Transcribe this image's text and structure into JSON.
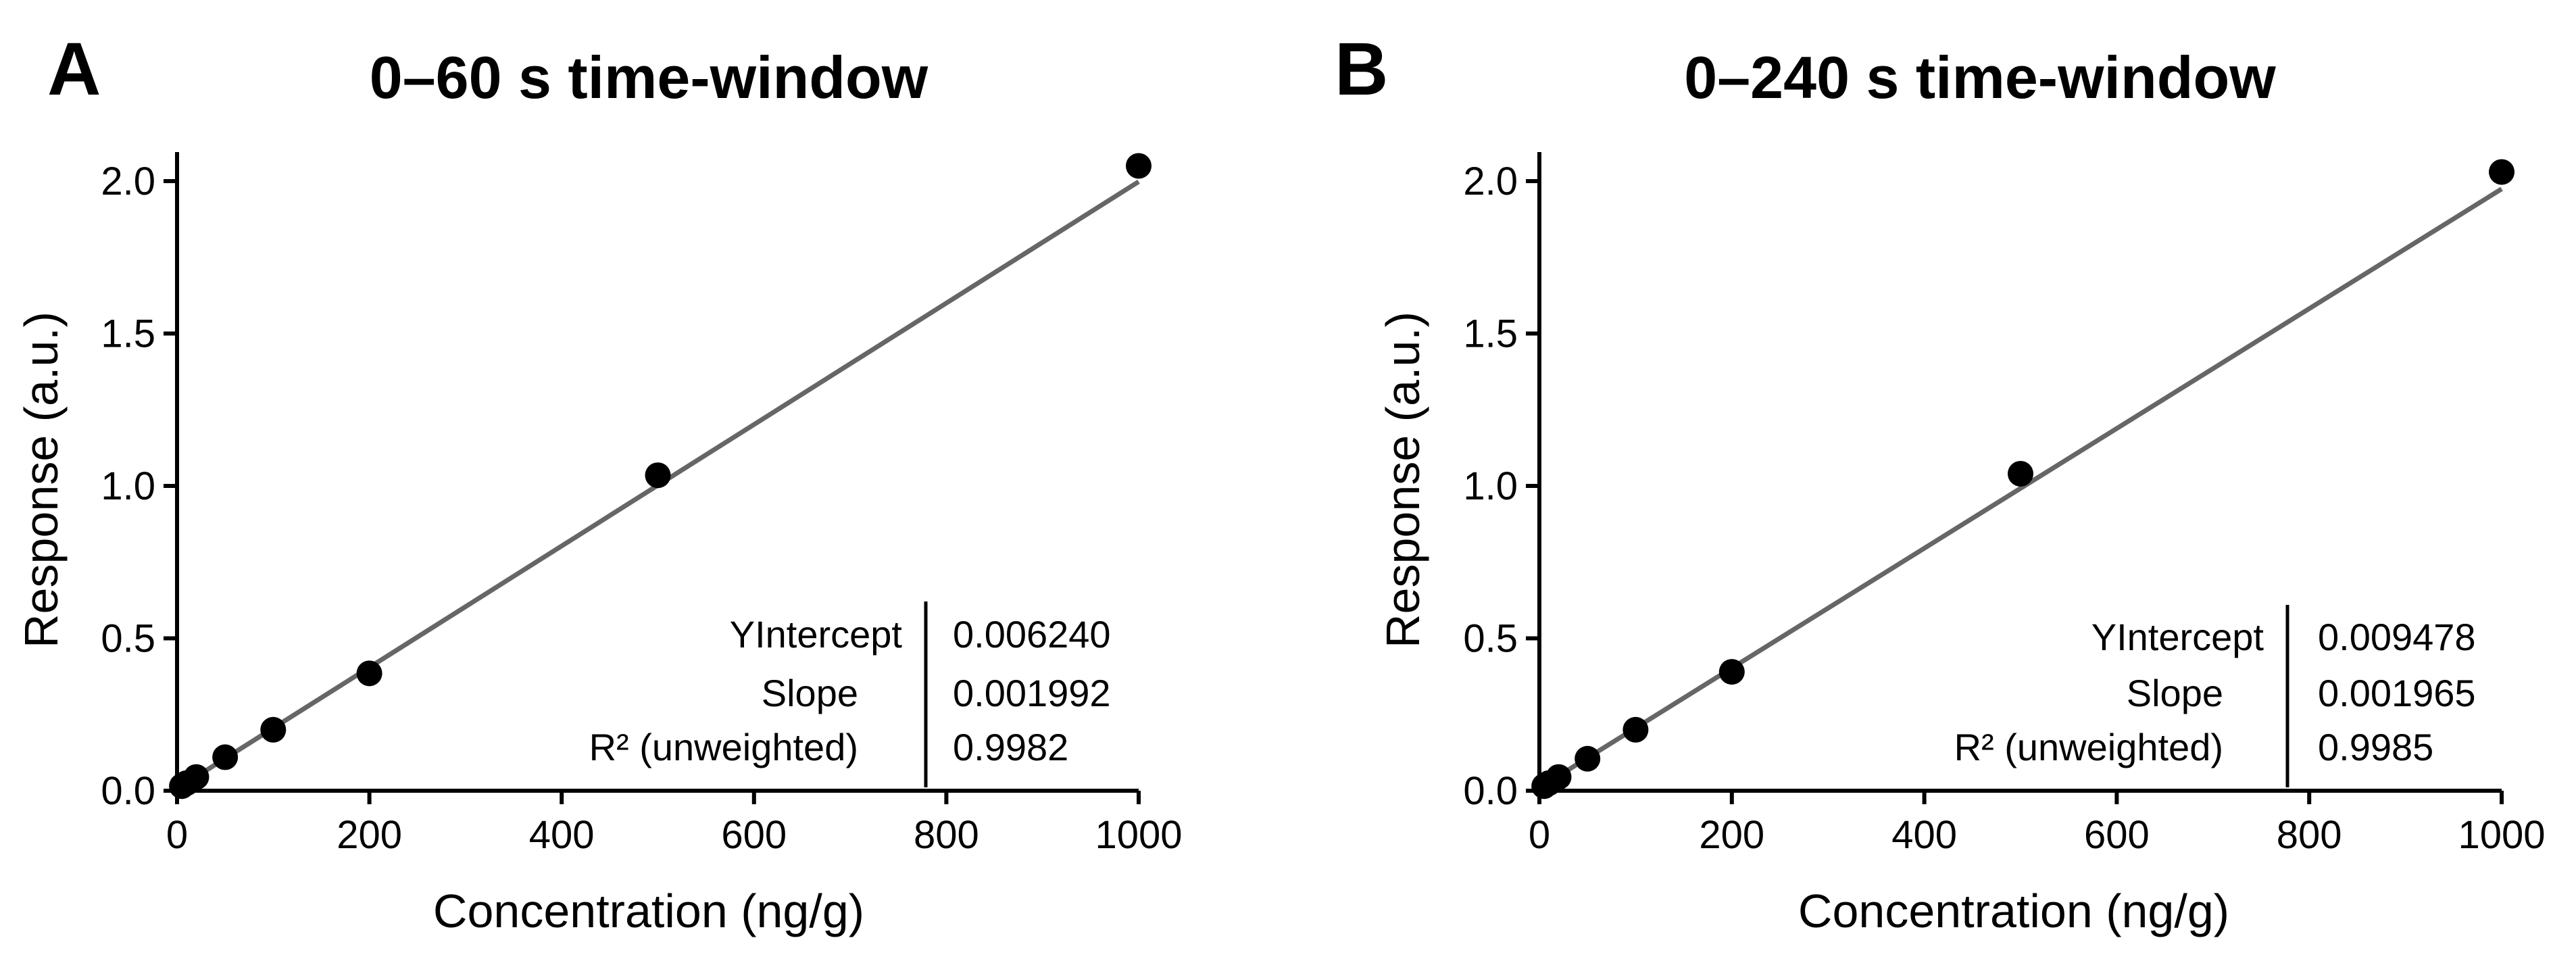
{
  "chart_data": [
    {
      "panel": "A",
      "type": "scatter",
      "title": "0–60 s time-window",
      "xlabel": "Concentration (ng/g)",
      "ylabel": "Response (a.u.)",
      "xlim": [
        0,
        1000
      ],
      "ylim": [
        0,
        2.0
      ],
      "xticks": [
        0,
        200,
        400,
        600,
        800,
        1000
      ],
      "xtick_labels": [
        "0",
        "200",
        "400",
        "600",
        "800",
        "1000"
      ],
      "yticks": [
        0,
        0.5,
        1.0,
        1.5,
        2.0
      ],
      "ytick_labels": [
        "0.0",
        "0.5",
        "1.0",
        "1.5",
        "2.0"
      ],
      "points": {
        "x": [
          5,
          10,
          20,
          50,
          100,
          200,
          500,
          1000
        ],
        "y": [
          0.015,
          0.025,
          0.045,
          0.11,
          0.2,
          0.385,
          1.035,
          2.05
        ]
      },
      "fit": {
        "intercept": 0.00624,
        "slope": 0.001992
      },
      "stats": {
        "labels": [
          "YIntercept",
          "Slope",
          "R² (unweighted)"
        ],
        "values": [
          "0.006240",
          "0.001992",
          "0.9982"
        ]
      }
    },
    {
      "panel": "B",
      "type": "scatter",
      "title": "0–240 s time-window",
      "xlabel": "Concentration (ng/g)",
      "ylabel": "Response (a.u.)",
      "xlim": [
        0,
        1000
      ],
      "ylim": [
        0,
        2.0
      ],
      "xticks": [
        0,
        200,
        400,
        600,
        800,
        1000
      ],
      "xtick_labels": [
        "0",
        "200",
        "400",
        "600",
        "800",
        "1000"
      ],
      "yticks": [
        0,
        0.5,
        1.0,
        1.5,
        2.0
      ],
      "ytick_labels": [
        "0.0",
        "0.5",
        "1.0",
        "1.5",
        "2.0"
      ],
      "points": {
        "x": [
          5,
          10,
          20,
          50,
          100,
          200,
          500,
          1000
        ],
        "y": [
          0.015,
          0.025,
          0.045,
          0.105,
          0.2,
          0.39,
          1.04,
          2.03
        ]
      },
      "fit": {
        "intercept": 0.009478,
        "slope": 0.001965
      },
      "stats": {
        "labels": [
          "YIntercept",
          "Slope",
          "R² (unweighted)"
        ],
        "values": [
          "0.009478",
          "0.001965",
          "0.9985"
        ]
      }
    }
  ],
  "colors": {
    "points": "#000000",
    "fit_line": "#666666",
    "axes": "#000000"
  }
}
